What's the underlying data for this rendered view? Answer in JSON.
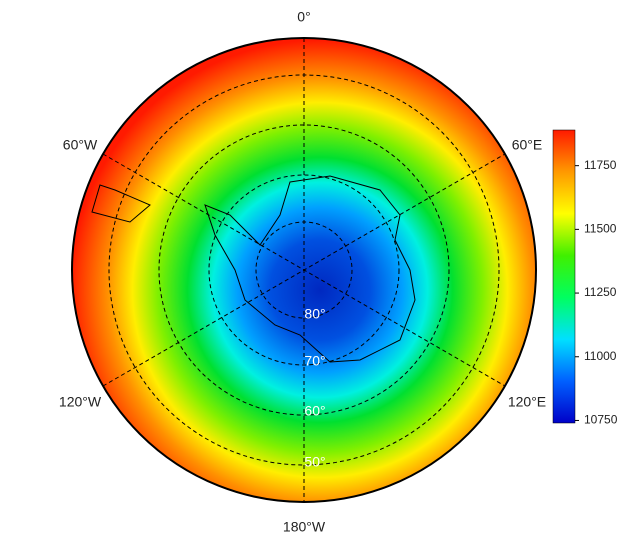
{
  "map": {
    "longitude_labels": [
      "0°",
      "60°E",
      "120°E",
      "180°W",
      "120°W",
      "60°W"
    ],
    "latitude_labels": [
      "80°",
      "70°",
      "60°",
      "50°"
    ]
  },
  "colorbar": {
    "range": [
      10740,
      11890
    ],
    "ticks": [
      10750,
      11000,
      11250,
      11500,
      11750
    ],
    "colors": [
      "#0000c8",
      "#0060ff",
      "#00e0ff",
      "#00ff60",
      "#40f000",
      "#ffff00",
      "#ff9900",
      "#ff1a00"
    ]
  }
}
